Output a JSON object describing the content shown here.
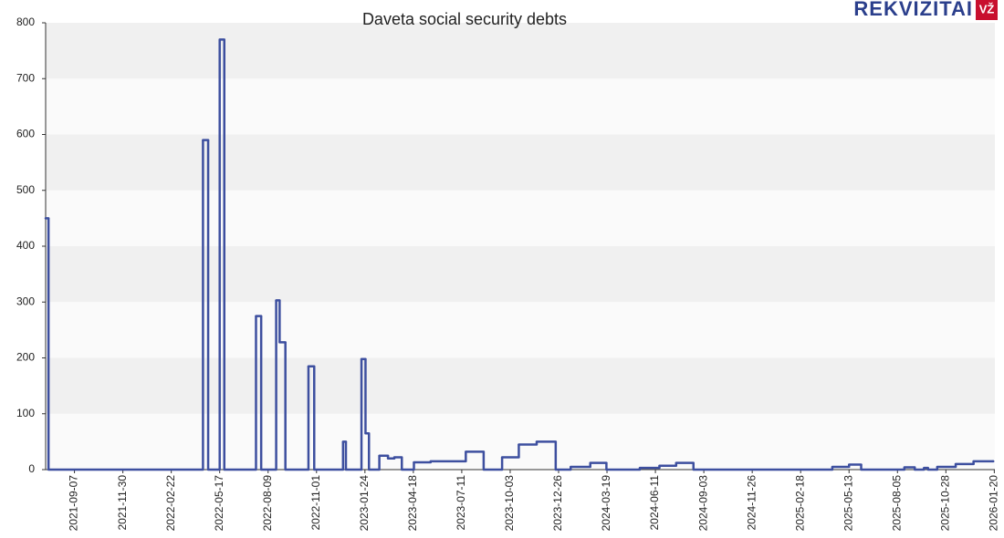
{
  "brand": {
    "name": "REKVIZITAI",
    "badge": "VŽ"
  },
  "chart_data": {
    "type": "line",
    "step": true,
    "title": "Daveta social security debts",
    "color": "#3d4f9f",
    "x": [
      "2021-07-19",
      "2021-07-24",
      "2022-04-18",
      "2022-04-27",
      "2022-05-17",
      "2022-05-25",
      "2022-07-19",
      "2022-07-28",
      "2022-08-23",
      "2022-08-29",
      "2022-09-08",
      "2022-10-18",
      "2022-10-28",
      "2022-12-17",
      "2022-12-22",
      "2023-01-18",
      "2023-01-25",
      "2023-01-31",
      "2023-02-18",
      "2023-03-05",
      "2023-03-16",
      "2023-03-29",
      "2023-04-19",
      "2023-05-18",
      "2023-07-18",
      "2023-08-18",
      "2023-09-19",
      "2023-10-18",
      "2023-11-18",
      "2023-12-21",
      "2024-01-16",
      "2024-02-19",
      "2024-03-18",
      "2024-05-15",
      "2024-06-18",
      "2024-07-17",
      "2024-08-16",
      "2025-04-14",
      "2025-05-13",
      "2025-06-03",
      "2025-08-17",
      "2025-09-04",
      "2025-09-20",
      "2025-09-27",
      "2025-10-13",
      "2025-11-14",
      "2025-12-15",
      "2026-01-18"
    ],
    "values": [
      450,
      0,
      590,
      0,
      770,
      0,
      275,
      0,
      303,
      228,
      0,
      185,
      0,
      50,
      0,
      198,
      65,
      0,
      25,
      20,
      22,
      0,
      13,
      15,
      32,
      0,
      22,
      45,
      50,
      0,
      5,
      12,
      0,
      3,
      7,
      12,
      0,
      5,
      9,
      0,
      4,
      0,
      3,
      0,
      5,
      10,
      15,
      15
    ],
    "xlim": [
      "2021-07-19",
      "2026-01-21"
    ],
    "xticks": [
      "2021-09-07",
      "2021-11-30",
      "2022-02-22",
      "2022-05-17",
      "2022-08-09",
      "2022-11-01",
      "2023-01-24",
      "2023-04-18",
      "2023-07-11",
      "2023-10-03",
      "2023-12-26",
      "2024-03-19",
      "2024-06-11",
      "2024-09-03",
      "2024-11-26",
      "2025-02-18",
      "2025-05-13",
      "2025-08-05",
      "2025-10-28",
      "2026-01-20"
    ],
    "ylim": [
      0,
      800
    ],
    "yticks": [
      0,
      100,
      200,
      300,
      400,
      500,
      600,
      700,
      800
    ],
    "grid": "bands"
  }
}
